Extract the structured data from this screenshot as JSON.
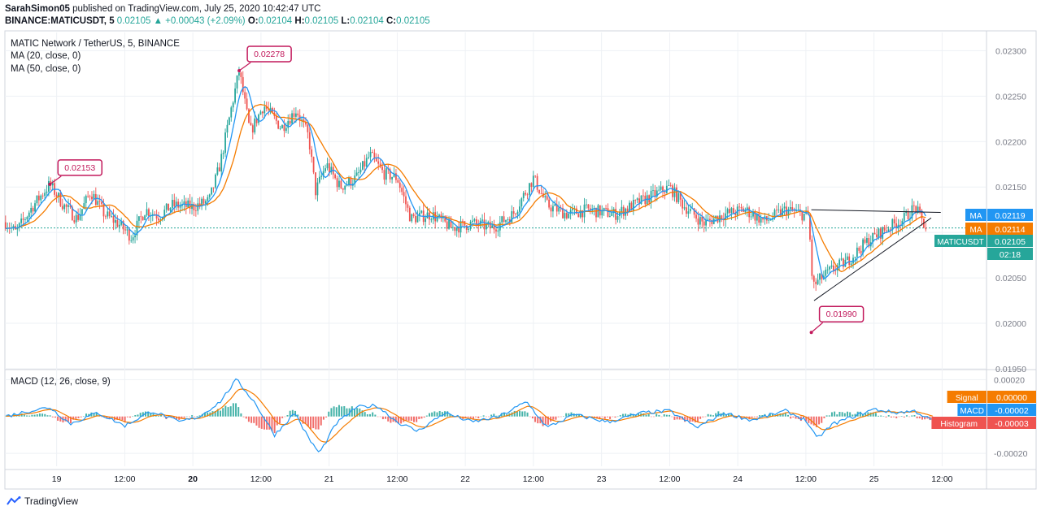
{
  "header": {
    "author": "SarahSimon05",
    "published_text": " published on TradingView.com, July 25, 2020 10:42:47 UTC",
    "symbol": "BINANCE:MATICUSDT, 5",
    "last": "0.02105",
    "change_arrow": "▲",
    "change": "+0.00043 (+2.09%)",
    "o_label": "O:",
    "o_val": "0.02104",
    "h_label": "H:",
    "h_val": "0.02105",
    "l_label": "L:",
    "l_val": "0.02104",
    "c_label": "C:",
    "c_val": "0.02105"
  },
  "legend": {
    "title": "MATIC Network / TetherUS, 5, BINANCE",
    "ma20": "MA (20, close, 0)",
    "ma50": "MA (50, close, 0)",
    "macd": "MACD (12, 26, close, 9)"
  },
  "footer": {
    "brand": "TradingView"
  },
  "colors": {
    "up": "#26a69a",
    "down": "#ef5350",
    "ma20": "#2196f3",
    "ma50": "#f57c00",
    "callout": "#c2185b",
    "grid": "#eef1f5",
    "axis": "#787b86"
  },
  "chart_data": {
    "type": "candlestick",
    "price_axis": {
      "ylim": [
        0.0195,
        0.0232
      ],
      "ticks": [
        "0.02300",
        "0.02250",
        "0.02200",
        "0.02150",
        "0.02100",
        "0.02050",
        "0.02000",
        "0.01950"
      ]
    },
    "macd_axis": {
      "ylim": [
        -0.00027,
        0.00025
      ],
      "ticks": [
        "0.00020",
        "-0.00020"
      ]
    },
    "x_ticks": [
      {
        "t": 0.5,
        "label": "19",
        "bold": false
      },
      {
        "t": 1.0,
        "label": "12:00",
        "bold": false
      },
      {
        "t": 1.5,
        "label": "20",
        "bold": true
      },
      {
        "t": 2.0,
        "label": "12:00",
        "bold": false
      },
      {
        "t": 2.5,
        "label": "21",
        "bold": false
      },
      {
        "t": 3.0,
        "label": "12:00",
        "bold": false
      },
      {
        "t": 3.5,
        "label": "22",
        "bold": false
      },
      {
        "t": 4.0,
        "label": "12:00",
        "bold": false
      },
      {
        "t": 4.5,
        "label": "23",
        "bold": false
      },
      {
        "t": 5.0,
        "label": "12:00",
        "bold": false
      },
      {
        "t": 5.5,
        "label": "24",
        "bold": false
      },
      {
        "t": 6.0,
        "label": "12:00",
        "bold": false
      },
      {
        "t": 6.5,
        "label": "25",
        "bold": false
      },
      {
        "t": 7.0,
        "label": "12:00",
        "bold": false
      }
    ],
    "x_range": [
      0.12,
      7.32
    ],
    "price_path": [
      [
        0.12,
        0.02112
      ],
      [
        0.2,
        0.021
      ],
      [
        0.32,
        0.02128
      ],
      [
        0.45,
        0.02153
      ],
      [
        0.55,
        0.0213
      ],
      [
        0.65,
        0.02115
      ],
      [
        0.75,
        0.02145
      ],
      [
        0.85,
        0.0212
      ],
      [
        0.95,
        0.0211
      ],
      [
        1.05,
        0.02095
      ],
      [
        1.15,
        0.02125
      ],
      [
        1.25,
        0.02118
      ],
      [
        1.35,
        0.0213
      ],
      [
        1.5,
        0.02128
      ],
      [
        1.62,
        0.02135
      ],
      [
        1.7,
        0.02175
      ],
      [
        1.78,
        0.02235
      ],
      [
        1.84,
        0.02278
      ],
      [
        1.92,
        0.0221
      ],
      [
        2.02,
        0.0224
      ],
      [
        2.15,
        0.02215
      ],
      [
        2.26,
        0.02235
      ],
      [
        2.35,
        0.02205
      ],
      [
        2.4,
        0.02145
      ],
      [
        2.48,
        0.02175
      ],
      [
        2.58,
        0.0215
      ],
      [
        2.7,
        0.0216
      ],
      [
        2.8,
        0.02185
      ],
      [
        2.9,
        0.02165
      ],
      [
        3.0,
        0.0216
      ],
      [
        3.1,
        0.02115
      ],
      [
        3.25,
        0.0212
      ],
      [
        3.4,
        0.02105
      ],
      [
        3.55,
        0.0211
      ],
      [
        3.7,
        0.02105
      ],
      [
        3.85,
        0.0212
      ],
      [
        4.0,
        0.0216
      ],
      [
        4.1,
        0.0213
      ],
      [
        4.25,
        0.0212
      ],
      [
        4.4,
        0.02125
      ],
      [
        4.6,
        0.0212
      ],
      [
        4.8,
        0.02135
      ],
      [
        5.0,
        0.0215
      ],
      [
        5.1,
        0.0213
      ],
      [
        5.25,
        0.0211
      ],
      [
        5.4,
        0.0212
      ],
      [
        5.55,
        0.02125
      ],
      [
        5.7,
        0.02112
      ],
      [
        5.85,
        0.02125
      ],
      [
        6.02,
        0.02118
      ],
      [
        6.05,
        0.0204
      ],
      [
        6.1,
        0.02048
      ],
      [
        6.2,
        0.0206
      ],
      [
        6.3,
        0.02068
      ],
      [
        6.45,
        0.0209
      ],
      [
        6.6,
        0.02105
      ],
      [
        6.72,
        0.02115
      ],
      [
        6.8,
        0.02128
      ],
      [
        6.88,
        0.02105
      ]
    ],
    "ma_values": {
      "ma20": 0.02119,
      "ma50": 0.02114,
      "last": 0.02105
    },
    "price_labels": [
      {
        "name": "MA",
        "value": "0.02119",
        "color": "#2196f3",
        "level": 0.02119
      },
      {
        "name": "MA",
        "value": "0.02114",
        "color": "#f57c00",
        "level": 0.02114
      },
      {
        "name": "MATICUSDT",
        "value": "0.02105",
        "color": "#26a69a",
        "level": 0.02105
      },
      {
        "name": "",
        "value": "02:18",
        "color": "#26a69a",
        "level": 0.02075
      }
    ],
    "macd_labels": [
      {
        "name": "Signal",
        "value": "0.00000",
        "color": "#f57c00",
        "level": 0.0
      },
      {
        "name": "MACD",
        "value": "-0.00002",
        "color": "#2196f3",
        "level": -2e-05
      },
      {
        "name": "Histogram",
        "value": "-0.00003",
        "color": "#ef5350",
        "level": -3e-05
      }
    ],
    "callouts": [
      {
        "label": "0.02153",
        "t": 0.45,
        "price": 0.02153
      },
      {
        "label": "0.02278",
        "t": 1.84,
        "price": 0.02278
      },
      {
        "label": "0.01990",
        "t": 6.04,
        "price": 0.0199
      }
    ],
    "trendlines": [
      {
        "t1": 6.04,
        "p1": 0.02125,
        "t2": 6.99,
        "p2": 0.02122
      },
      {
        "t1": 6.06,
        "p1": 0.02025,
        "t2": 6.92,
        "p2": 0.02116
      }
    ],
    "macd_path": [
      [
        0.12,
        0.0
      ],
      [
        0.3,
        3e-05
      ],
      [
        0.45,
        5e-05
      ],
      [
        0.6,
        -4e-05
      ],
      [
        0.8,
        2e-05
      ],
      [
        1.0,
        -5e-05
      ],
      [
        1.2,
        3e-05
      ],
      [
        1.4,
        -3e-05
      ],
      [
        1.55,
        0.0
      ],
      [
        1.7,
        8e-05
      ],
      [
        1.82,
        0.0002
      ],
      [
        1.95,
        8e-05
      ],
      [
        2.1,
        -0.0001
      ],
      [
        2.25,
        2e-05
      ],
      [
        2.35,
        -0.00012
      ],
      [
        2.43,
        -0.0002
      ],
      [
        2.55,
        -4e-05
      ],
      [
        2.7,
        5e-05
      ],
      [
        2.85,
        6e-05
      ],
      [
        3.0,
        -3e-05
      ],
      [
        3.15,
        -8e-05
      ],
      [
        3.35,
        2e-05
      ],
      [
        3.55,
        -3e-05
      ],
      [
        3.75,
        0.0
      ],
      [
        3.95,
        8e-05
      ],
      [
        4.1,
        -6e-05
      ],
      [
        4.3,
        1e-05
      ],
      [
        4.55,
        -3e-05
      ],
      [
        4.8,
        2e-05
      ],
      [
        5.0,
        3e-05
      ],
      [
        5.2,
        -6e-05
      ],
      [
        5.4,
        2e-05
      ],
      [
        5.6,
        -2e-05
      ],
      [
        5.85,
        3e-05
      ],
      [
        6.0,
        -2e-05
      ],
      [
        6.08,
        -0.00012
      ],
      [
        6.2,
        -4e-05
      ],
      [
        6.35,
        0.0
      ],
      [
        6.5,
        4e-05
      ],
      [
        6.65,
        2e-05
      ],
      [
        6.8,
        3e-05
      ],
      [
        6.92,
        -2e-05
      ]
    ]
  }
}
